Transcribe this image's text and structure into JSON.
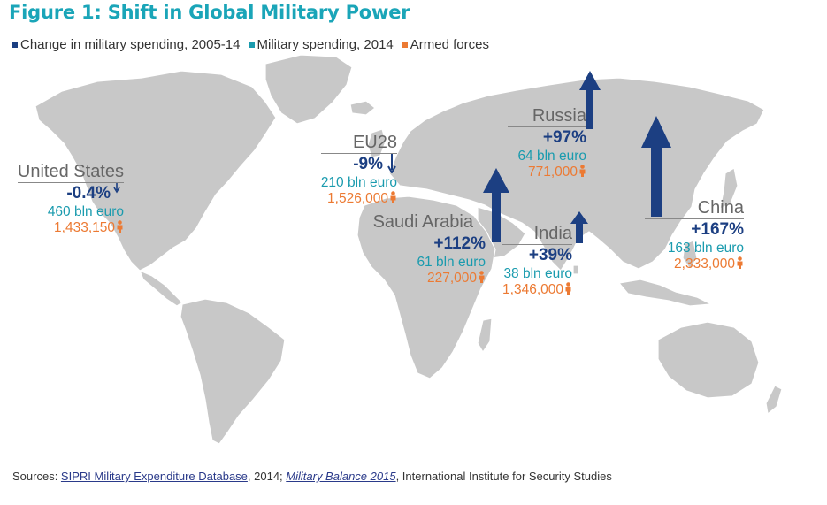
{
  "title": "Figure 1: Shift in Global Military Power",
  "legend": [
    {
      "label": "Change in military spending, 2005-14",
      "color": "#1c3f82"
    },
    {
      "label": "Military spending, 2014",
      "color": "#1a9bae"
    },
    {
      "label": "Armed forces",
      "color": "#ec7a33"
    }
  ],
  "map": {
    "land_color": "#c8c8c8",
    "arrow_color": "#1c3f82"
  },
  "countries": [
    {
      "name": "United States",
      "change": "-0.4%",
      "spending": "460 bln euro",
      "forces": "1,433,150"
    },
    {
      "name": "EU28",
      "change": "-9%",
      "spending": "210 bln euro",
      "forces": "1,526,000"
    },
    {
      "name": "Russia",
      "change": "+97%",
      "spending": "64 bln euro",
      "forces": "771,000"
    },
    {
      "name": "Saudi Arabia",
      "change": "+112%",
      "spending": "61 bln euro",
      "forces": "227,000"
    },
    {
      "name": "India",
      "change": "+39%",
      "spending": "38 bln euro",
      "forces": "1,346,000"
    },
    {
      "name": "China",
      "change": "+167%",
      "spending": "163 bln euro",
      "forces": "2,333,000"
    }
  ],
  "sources": {
    "prefix": "Sources: ",
    "link1": "SIPRI Military Expenditure Database",
    "mid": ", 2014; ",
    "link2": "Military Balance 2015",
    "suffix": ", International Institute for Security Studies"
  }
}
